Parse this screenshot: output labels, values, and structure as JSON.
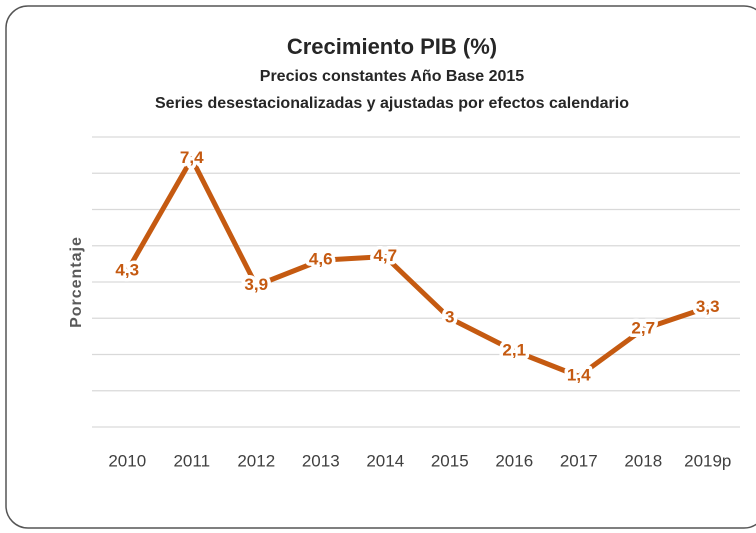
{
  "chart_data": {
    "type": "line",
    "title": "Crecimiento PIB (%)",
    "subtitle": "Precios constantes Año Base 2015",
    "subtitle2": "Series desestacionalizadas y ajustadas por efectos calendario",
    "y_label": "Porcentaje",
    "categories": [
      "2010",
      "2011",
      "2012",
      "2013",
      "2014",
      "2015",
      "2016",
      "2017",
      "2018",
      "2019p"
    ],
    "values": [
      4.3,
      7.4,
      3.9,
      4.6,
      4.7,
      3,
      2.1,
      1.4,
      2.7,
      3.3
    ],
    "value_labels": [
      "4,3",
      "7,4",
      "3,9",
      "4,6",
      "4,7",
      "3",
      "2,1",
      "1,4",
      "2,7",
      "3,3"
    ],
    "color": "#c55a11",
    "ylim": [
      0,
      8
    ],
    "yticks": [
      0,
      1,
      2,
      3,
      4,
      5,
      6,
      7,
      8
    ],
    "grid": true
  }
}
